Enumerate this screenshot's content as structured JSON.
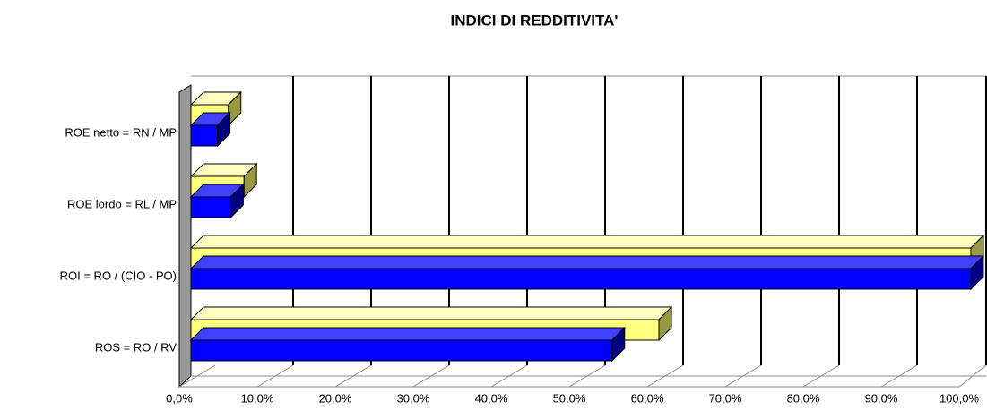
{
  "chart_data": {
    "type": "bar3d_horizontal",
    "title": "INDICI DI REDDITIVITA'",
    "categories": [
      "ROS  = RO / RV",
      "ROI  = RO  / (CIO - PO)",
      "ROE lordo  = RL / MP",
      "ROE netto  = RN / MP"
    ],
    "series": [
      {
        "color": "#ffff80",
        "values": [
          60.0,
          100.0,
          6.8,
          4.8
        ]
      },
      {
        "color": "#0000ff",
        "values": [
          54.0,
          100.0,
          5.1,
          3.4
        ]
      }
    ],
    "xlim": [
      0,
      100
    ],
    "xticks": [
      {
        "value": 0,
        "label": "0,0%"
      },
      {
        "value": 10,
        "label": "10,0%"
      },
      {
        "value": 20,
        "label": "20,0%"
      },
      {
        "value": 30,
        "label": "30,0%"
      },
      {
        "value": 40,
        "label": "40,0%"
      },
      {
        "value": 50,
        "label": "50,0%"
      },
      {
        "value": 60,
        "label": "60,0%"
      },
      {
        "value": 70,
        "label": "70,0%"
      },
      {
        "value": 80,
        "label": "80,0%"
      },
      {
        "value": 90,
        "label": "90,0%"
      },
      {
        "value": 100,
        "label": "100,0%"
      }
    ],
    "grid": true
  }
}
